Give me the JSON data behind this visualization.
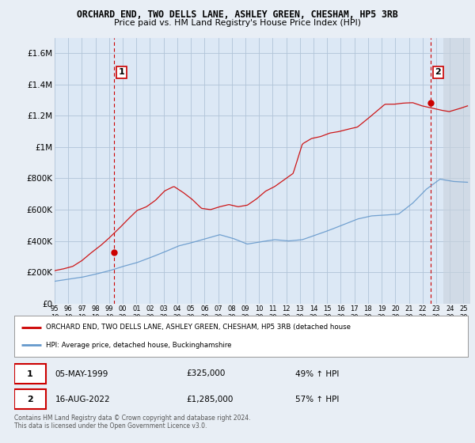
{
  "title_line1": "ORCHARD END, TWO DELLS LANE, ASHLEY GREEN, CHESHAM, HP5 3RB",
  "title_line2": "Price paid vs. HM Land Registry's House Price Index (HPI)",
  "ylabel_ticks": [
    "£0",
    "£200K",
    "£400K",
    "£600K",
    "£800K",
    "£1M",
    "£1.2M",
    "£1.4M",
    "£1.6M"
  ],
  "ylabel_values": [
    0,
    200000,
    400000,
    600000,
    800000,
    1000000,
    1200000,
    1400000,
    1600000
  ],
  "ylim": [
    0,
    1700000
  ],
  "xlim_start": 1995.0,
  "xlim_end": 2025.5,
  "x_ticks": [
    1995,
    1996,
    1997,
    1998,
    1999,
    2000,
    2001,
    2002,
    2003,
    2004,
    2005,
    2006,
    2007,
    2008,
    2009,
    2010,
    2011,
    2012,
    2013,
    2014,
    2015,
    2016,
    2017,
    2018,
    2019,
    2020,
    2021,
    2022,
    2023,
    2024,
    2025
  ],
  "bg_color": "#e8eef5",
  "plot_bg_color": "#dce8f5",
  "future_bg_color": "#c8d0d8",
  "grid_color": "#b0c4d8",
  "red_line_color": "#cc0000",
  "blue_line_color": "#6699cc",
  "vline_color": "#cc0000",
  "legend_line1": "ORCHARD END, TWO DELLS LANE, ASHLEY GREEN, CHESHAM, HP5 3RB (detached house",
  "legend_line2": "HPI: Average price, detached house, Buckinghamshire",
  "note1_date": "05-MAY-1999",
  "note1_price": "£325,000",
  "note1_hpi": "49% ↑ HPI",
  "note2_date": "16-AUG-2022",
  "note2_price": "£1,285,000",
  "note2_hpi": "57% ↑ HPI",
  "copyright_text": "Contains HM Land Registry data © Crown copyright and database right 2024.\nThis data is licensed under the Open Government Licence v3.0.",
  "purchase1_x": 1999.37,
  "purchase1_y": 325000,
  "purchase2_x": 2022.62,
  "purchase2_y": 1285000,
  "future_start_x": 2023.5
}
